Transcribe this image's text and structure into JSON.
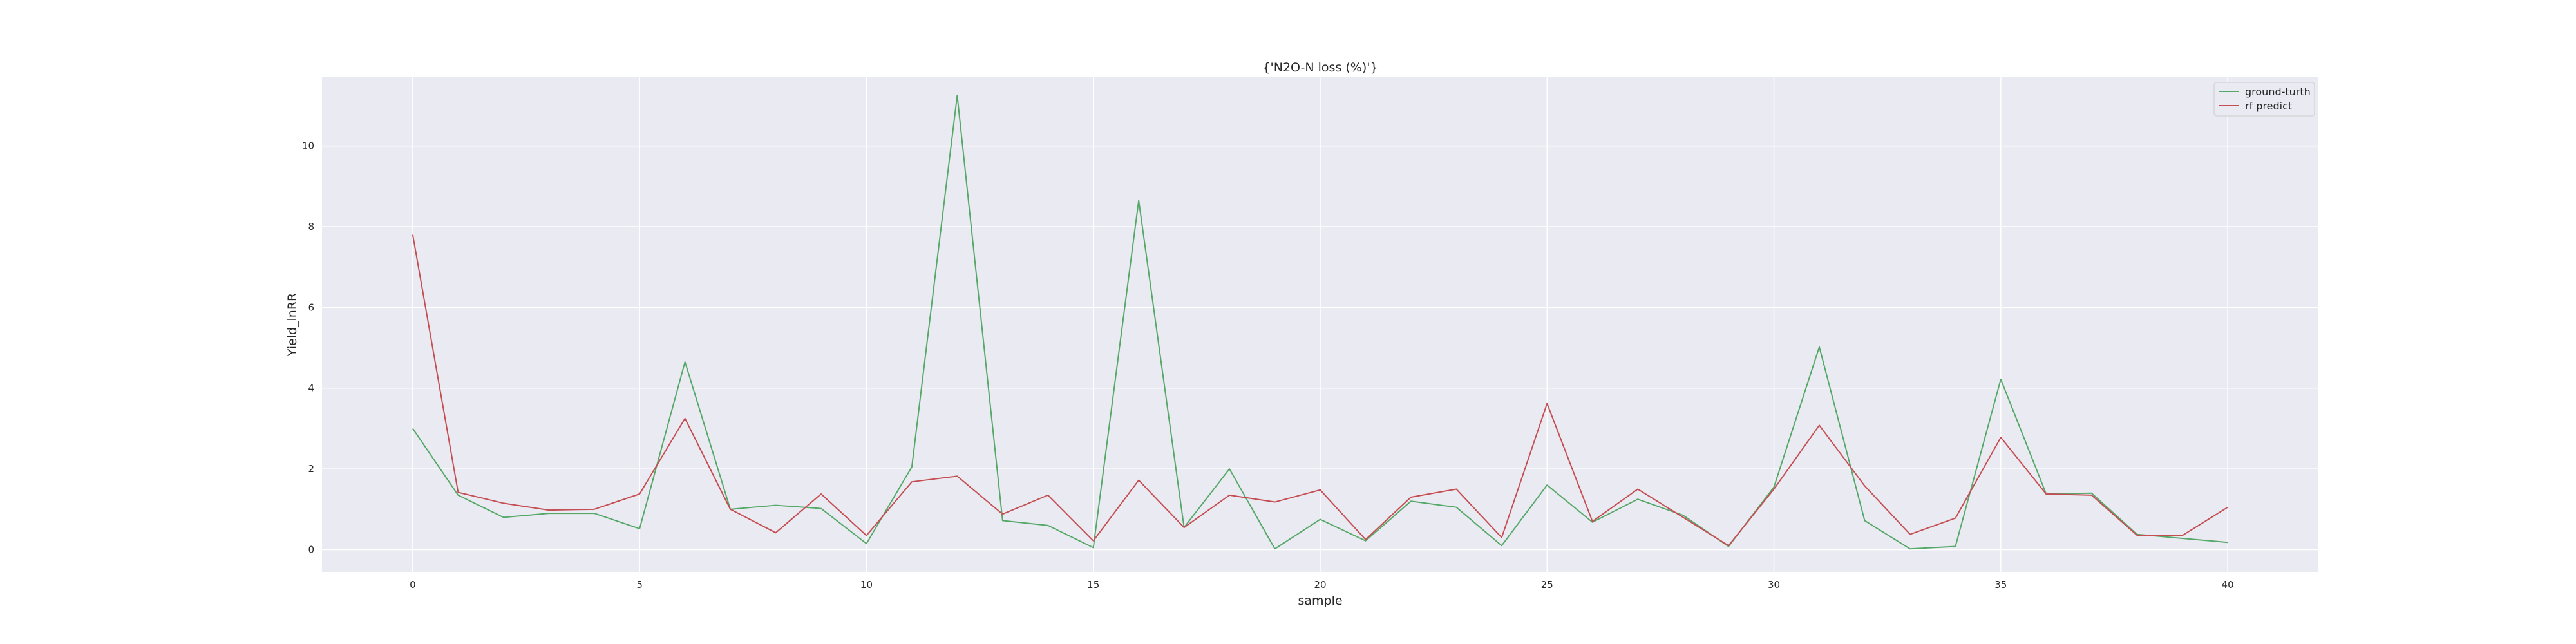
{
  "chart_data": {
    "type": "line",
    "title": "{'N2O-N loss (%)'}",
    "xlabel": "sample",
    "ylabel": "Yield_lnRR",
    "xlim": [
      -2,
      42
    ],
    "ylim": [
      -0.55,
      11.7
    ],
    "xticks": [
      0,
      5,
      10,
      15,
      20,
      25,
      30,
      35,
      40
    ],
    "yticks": [
      0,
      2,
      4,
      6,
      8,
      10
    ],
    "grid": true,
    "legend_position": "top-right",
    "x": [
      0,
      1,
      2,
      3,
      4,
      5,
      6,
      7,
      8,
      9,
      10,
      11,
      12,
      13,
      14,
      15,
      16,
      17,
      18,
      19,
      20,
      21,
      22,
      23,
      24,
      25,
      26,
      27,
      28,
      29,
      30,
      31,
      32,
      33,
      34,
      35,
      36,
      37,
      38,
      39,
      40
    ],
    "series": [
      {
        "name": "ground-turth",
        "color": "#55a868",
        "values": [
          3.0,
          1.35,
          0.8,
          0.9,
          0.9,
          0.52,
          4.65,
          1.0,
          1.1,
          1.02,
          0.15,
          2.05,
          11.25,
          0.72,
          0.6,
          0.05,
          8.65,
          0.55,
          2.0,
          0.02,
          0.75,
          0.22,
          1.2,
          1.05,
          0.1,
          1.6,
          0.68,
          1.25,
          0.85,
          0.08,
          1.55,
          5.02,
          0.72,
          0.02,
          0.08,
          4.22,
          1.38,
          1.4,
          0.38,
          0.28,
          0.18
        ]
      },
      {
        "name": "rf predict",
        "color": "#c44e52",
        "values": [
          7.8,
          1.42,
          1.15,
          0.98,
          1.0,
          1.38,
          3.25,
          1.0,
          0.42,
          1.38,
          0.35,
          1.68,
          1.82,
          0.88,
          1.35,
          0.22,
          1.72,
          0.55,
          1.35,
          1.18,
          1.48,
          0.25,
          1.3,
          1.5,
          0.3,
          3.62,
          0.7,
          1.5,
          0.8,
          0.1,
          1.5,
          3.08,
          1.58,
          0.38,
          0.78,
          2.78,
          1.38,
          1.35,
          0.36,
          0.35,
          1.05
        ]
      }
    ]
  }
}
